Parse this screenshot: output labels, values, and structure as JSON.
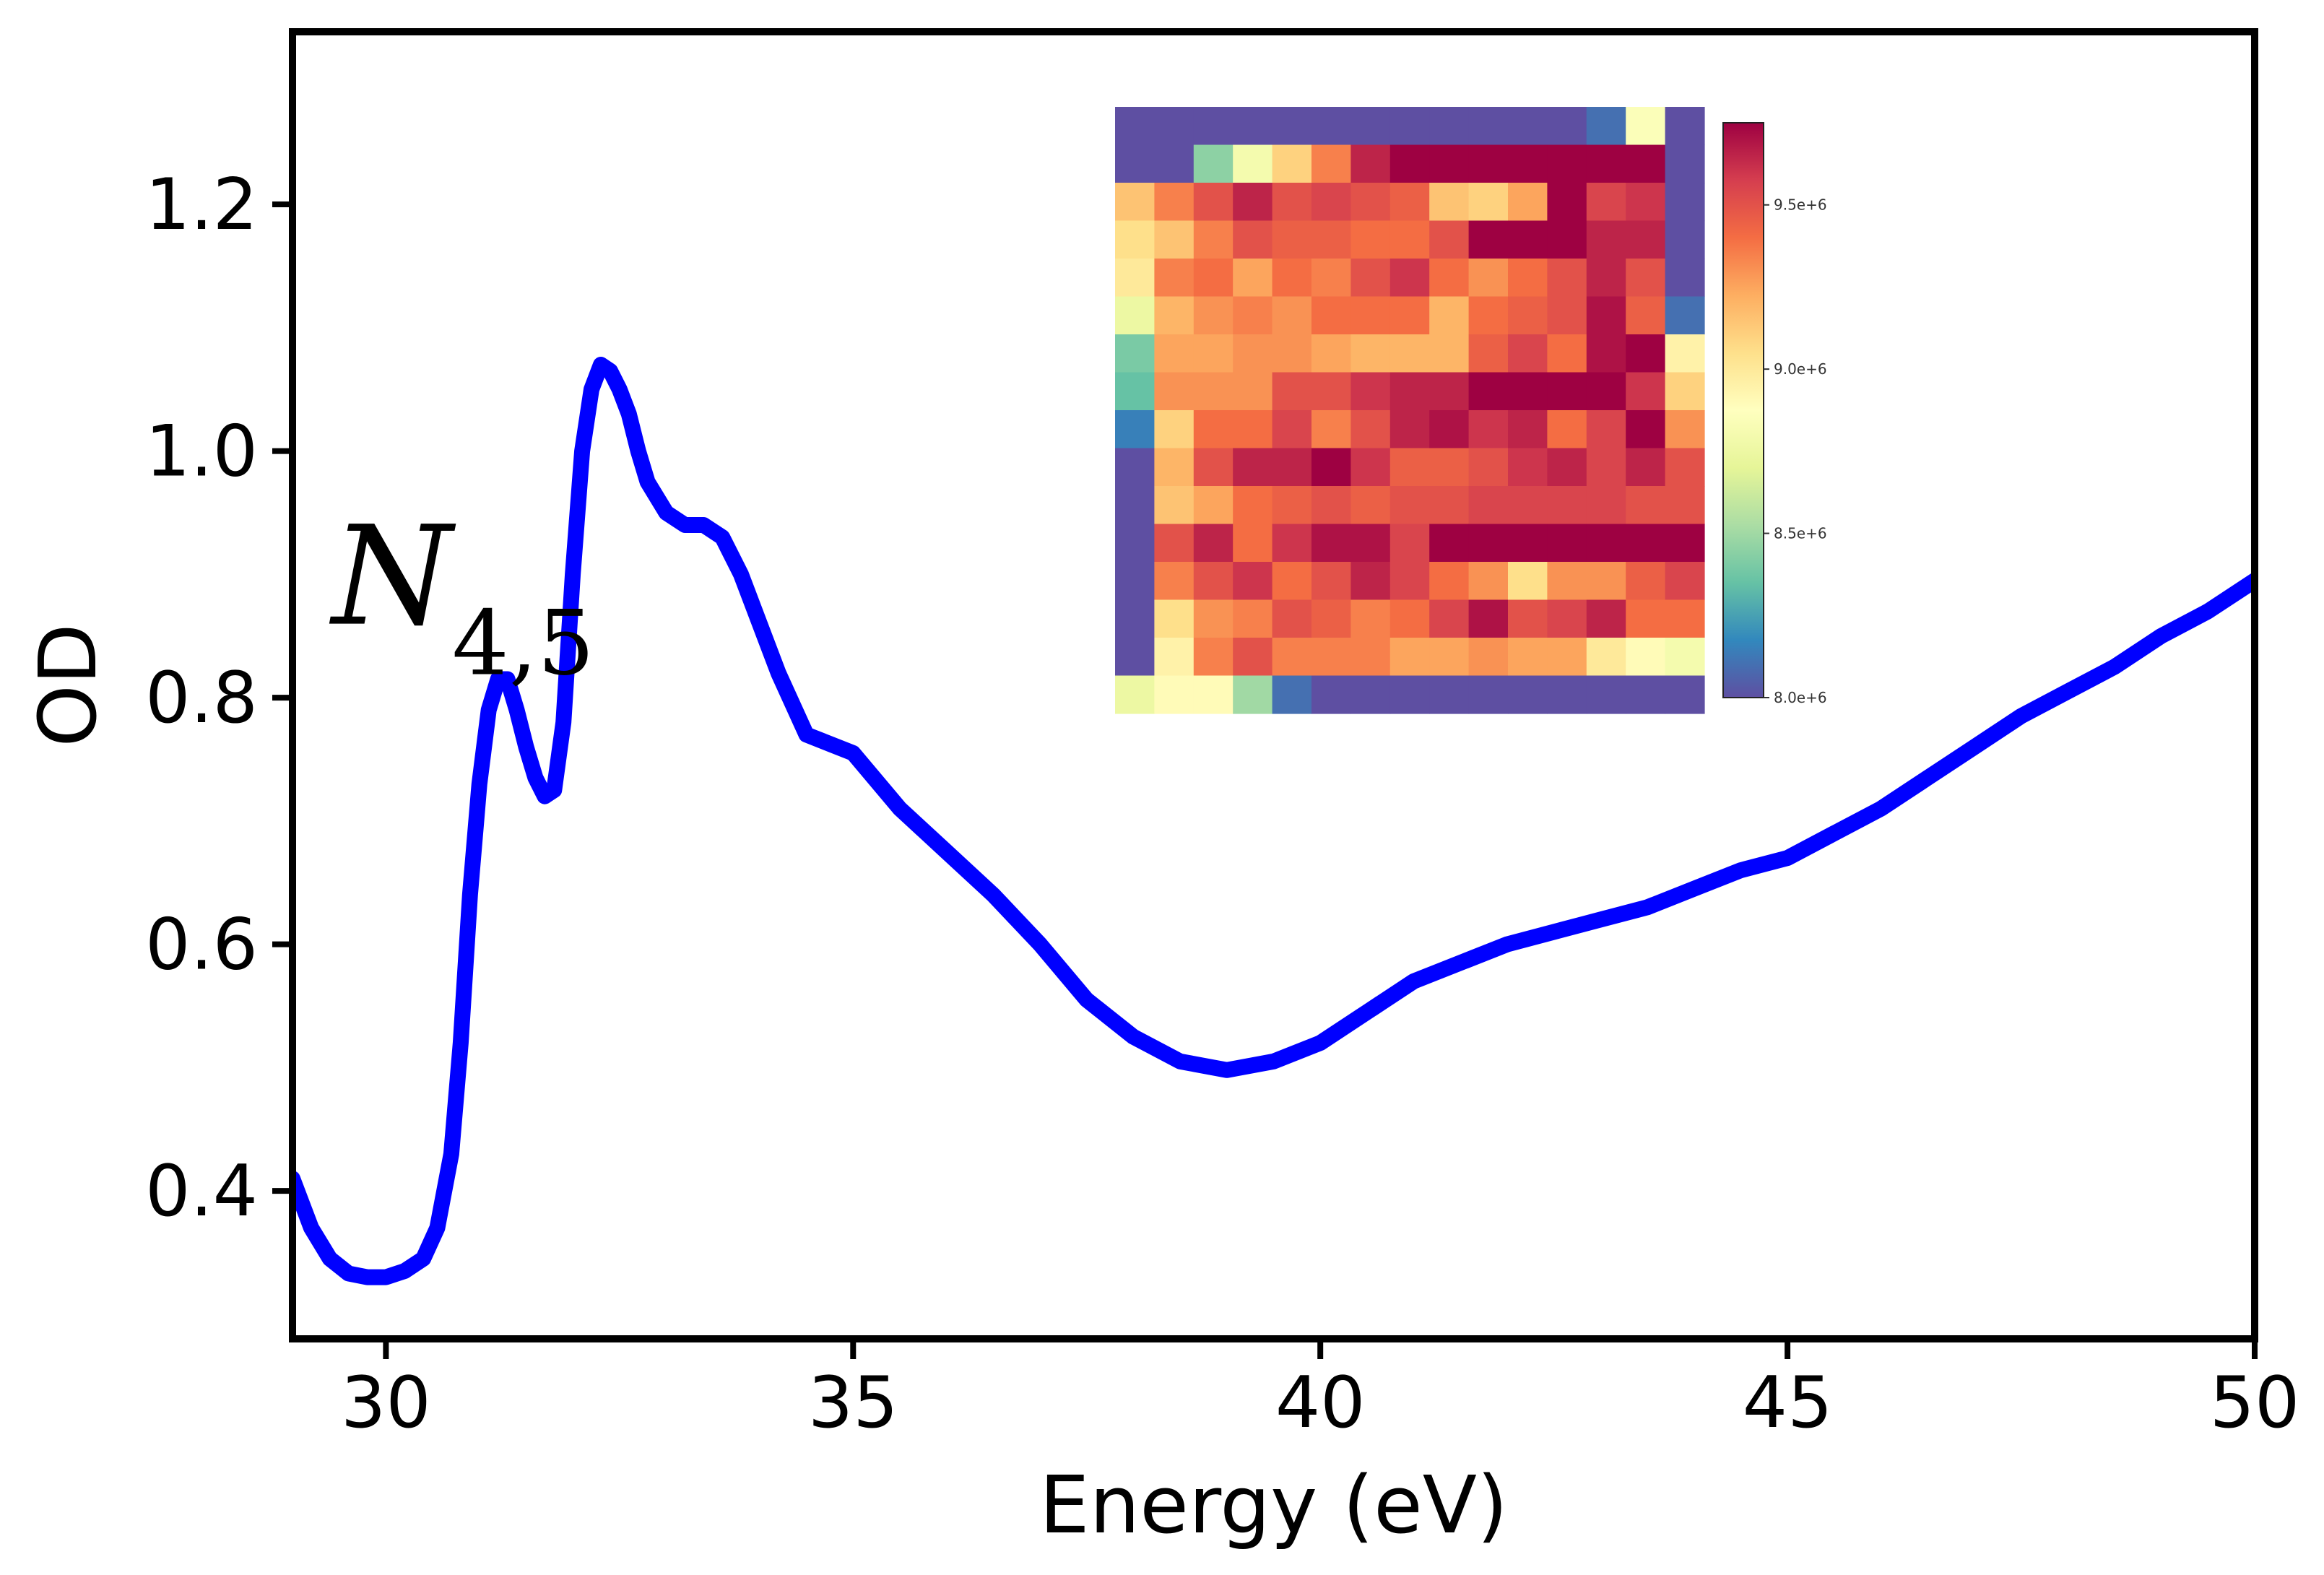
{
  "chart_data": {
    "type": "line",
    "xlabel": "Energy (eV)",
    "ylabel": "OD",
    "xlim": [
      29,
      50
    ],
    "ylim": [
      0.28,
      1.34
    ],
    "xticks": [
      30,
      35,
      40,
      45,
      50
    ],
    "yticks": [
      0.4,
      0.6,
      0.8,
      1.0,
      1.2
    ],
    "xtick_labels": [
      "30",
      "35",
      "40",
      "45",
      "50"
    ],
    "ytick_labels": [
      "0.4",
      "0.6",
      "0.8",
      "1.0",
      "1.2"
    ],
    "grid": false,
    "line_color": "#0000ff",
    "series": [
      {
        "x": [
          29.0,
          29.2,
          29.4,
          29.6,
          29.8,
          30.0,
          30.2,
          30.4,
          30.55,
          30.7,
          30.8,
          30.9,
          31.0,
          31.1,
          31.2,
          31.3,
          31.4,
          31.5,
          31.6,
          31.7,
          31.8,
          31.9,
          32.0,
          32.1,
          32.2,
          32.3,
          32.4,
          32.5,
          32.6,
          32.7,
          32.8,
          33.0,
          33.2,
          33.4,
          33.6,
          33.8,
          34.0,
          34.2,
          34.5,
          35.0,
          35.5,
          36.0,
          36.5,
          37.0,
          37.5,
          38.0,
          38.5,
          39.0,
          39.5,
          40.0,
          40.5,
          41.0,
          41.5,
          42.0,
          42.5,
          43.0,
          43.5,
          44.0,
          44.5,
          45.0,
          45.5,
          46.0,
          46.5,
          47.0,
          47.5,
          48.0,
          48.5,
          49.0,
          49.5,
          50.0
        ],
        "y": [
          0.41,
          0.37,
          0.345,
          0.333,
          0.33,
          0.33,
          0.335,
          0.345,
          0.37,
          0.43,
          0.52,
          0.64,
          0.73,
          0.79,
          0.815,
          0.815,
          0.79,
          0.76,
          0.735,
          0.72,
          0.725,
          0.78,
          0.9,
          1.0,
          1.05,
          1.07,
          1.065,
          1.05,
          1.03,
          1.0,
          0.975,
          0.95,
          0.94,
          0.94,
          0.93,
          0.9,
          0.86,
          0.82,
          0.77,
          0.755,
          0.71,
          0.675,
          0.64,
          0.6,
          0.555,
          0.525,
          0.505,
          0.498,
          0.505,
          0.52,
          0.545,
          0.57,
          0.585,
          0.6,
          0.61,
          0.62,
          0.63,
          0.645,
          0.66,
          0.67,
          0.69,
          0.71,
          0.735,
          0.76,
          0.785,
          0.805,
          0.825,
          0.85,
          0.87,
          0.895
        ]
      }
    ],
    "annotation": {
      "base": "N",
      "subscript": "4,5",
      "x": 30.35,
      "y": 0.86
    },
    "inset_heatmap": {
      "rows": 16,
      "cols": 15,
      "colormap": "Spectral_r",
      "vmin": 8000000.0,
      "vmax": 9750000.0,
      "colorbar_ticks": [
        8000000.0,
        8500000.0,
        9000000.0,
        9500000.0
      ],
      "colorbar_tick_labels": [
        "8.0e+6",
        "8.5e+6",
        "9.0e+6",
        "9.5e+6"
      ],
      "values": [
        [
          8.0,
          8.0,
          8.0,
          8.0,
          8.0,
          8.0,
          8.0,
          8.0,
          8.0,
          8.0,
          8.0,
          8.0,
          8.1,
          8.85,
          8.0
        ],
        [
          8.0,
          8.0,
          8.45,
          8.8,
          9.1,
          9.35,
          9.65,
          9.75,
          9.75,
          9.75,
          9.75,
          9.75,
          9.75,
          9.75,
          8.0
        ],
        [
          9.15,
          9.35,
          9.5,
          9.65,
          9.5,
          9.55,
          9.5,
          9.45,
          9.15,
          9.1,
          9.25,
          9.75,
          9.55,
          9.6,
          8.0
        ],
        [
          9.05,
          9.15,
          9.35,
          9.5,
          9.45,
          9.45,
          9.4,
          9.4,
          9.5,
          9.75,
          9.75,
          9.75,
          9.65,
          9.65,
          8.0
        ],
        [
          9.0,
          9.35,
          9.4,
          9.25,
          9.4,
          9.35,
          9.5,
          9.6,
          9.4,
          9.3,
          9.4,
          9.5,
          9.65,
          9.5,
          8.0
        ],
        [
          8.75,
          9.2,
          9.3,
          9.35,
          9.3,
          9.4,
          9.4,
          9.4,
          9.2,
          9.4,
          9.45,
          9.5,
          9.7,
          9.45,
          8.1
        ],
        [
          8.4,
          9.25,
          9.25,
          9.3,
          9.3,
          9.25,
          9.2,
          9.2,
          9.2,
          9.45,
          9.55,
          9.4,
          9.7,
          9.75,
          8.95
        ],
        [
          8.35,
          9.3,
          9.3,
          9.3,
          9.5,
          9.5,
          9.6,
          9.65,
          9.65,
          9.75,
          9.75,
          9.75,
          9.75,
          9.6,
          9.1
        ],
        [
          8.15,
          9.1,
          9.4,
          9.4,
          9.55,
          9.35,
          9.5,
          9.65,
          9.7,
          9.6,
          9.65,
          9.4,
          9.55,
          9.75,
          9.3
        ],
        [
          8.0,
          9.2,
          9.5,
          9.65,
          9.65,
          9.75,
          9.6,
          9.45,
          9.45,
          9.5,
          9.6,
          9.65,
          9.55,
          9.65,
          9.5
        ],
        [
          8.0,
          9.15,
          9.25,
          9.4,
          9.45,
          9.5,
          9.45,
          9.5,
          9.5,
          9.55,
          9.55,
          9.55,
          9.55,
          9.5,
          9.5
        ],
        [
          8.0,
          9.5,
          9.65,
          9.4,
          9.6,
          9.7,
          9.7,
          9.55,
          9.75,
          9.75,
          9.75,
          9.75,
          9.75,
          9.75,
          9.75
        ],
        [
          8.0,
          9.35,
          9.5,
          9.6,
          9.4,
          9.5,
          9.65,
          9.55,
          9.4,
          9.3,
          9.05,
          9.3,
          9.3,
          9.45,
          9.55
        ],
        [
          8.0,
          9.05,
          9.3,
          9.35,
          9.5,
          9.45,
          9.35,
          9.4,
          9.55,
          9.7,
          9.5,
          9.55,
          9.65,
          9.4,
          9.4
        ],
        [
          8.0,
          8.95,
          9.35,
          9.5,
          9.35,
          9.35,
          9.35,
          9.25,
          9.25,
          9.3,
          9.25,
          9.25,
          9.0,
          8.9,
          8.8
        ],
        [
          8.75,
          8.9,
          8.9,
          8.5,
          8.1,
          8.0,
          8.0,
          8.0,
          8.0,
          8.0,
          8.0,
          8.0,
          8.0,
          8.0,
          8.0
        ]
      ]
    }
  }
}
